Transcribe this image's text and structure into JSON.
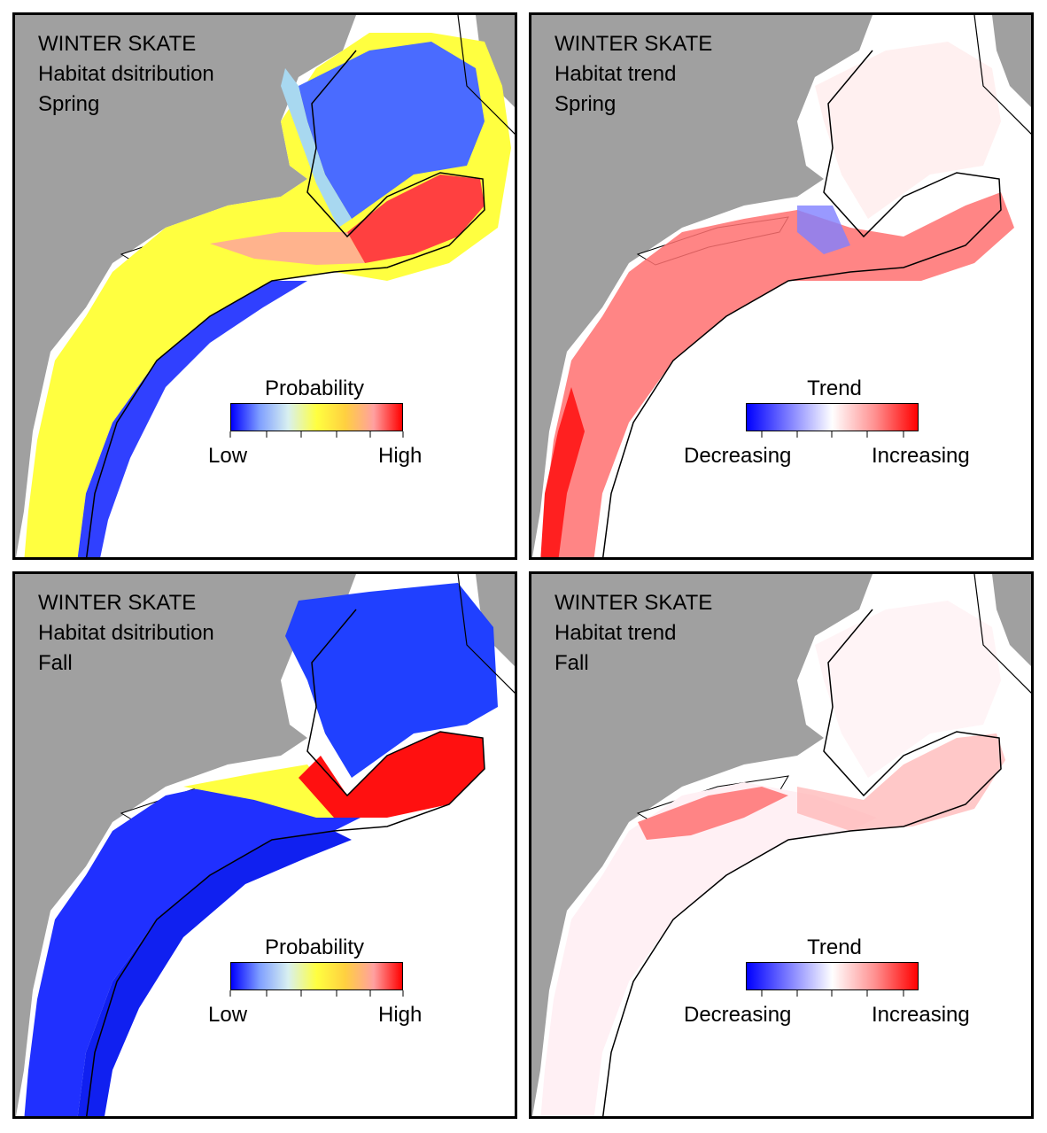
{
  "panels": [
    {
      "species": "WINTER SKATE",
      "subtitle": "Habitat dsitribution",
      "season": "Spring",
      "legend": {
        "title": "Probability",
        "low": "Low",
        "high": "High",
        "scale": "probability"
      }
    },
    {
      "species": "WINTER SKATE",
      "subtitle": "Habitat trend",
      "season": "Spring",
      "legend": {
        "title": "Trend",
        "low": "Decreasing",
        "high": "Increasing",
        "scale": "trend"
      }
    },
    {
      "species": "WINTER SKATE",
      "subtitle": "Habitat dsitribution",
      "season": "Fall",
      "legend": {
        "title": "Probability",
        "low": "Low",
        "high": "High",
        "scale": "probability"
      }
    },
    {
      "species": "WINTER SKATE",
      "subtitle": "Habitat trend",
      "season": "Fall",
      "legend": {
        "title": "Trend",
        "low": "Decreasing",
        "high": "Increasing",
        "scale": "trend"
      }
    }
  ],
  "colors": {
    "land": "#a0a0a0",
    "water": "#ffffff",
    "outline": "#000000",
    "probability_scale": [
      "#0000ff",
      "#7f9fff",
      "#d8f0f0",
      "#ffff40",
      "#ffd040",
      "#ffa0a0",
      "#ff0000"
    ],
    "trend_scale": [
      "#0000ff",
      "#8080ff",
      "#ffffff",
      "#ff9090",
      "#ff0000"
    ]
  }
}
